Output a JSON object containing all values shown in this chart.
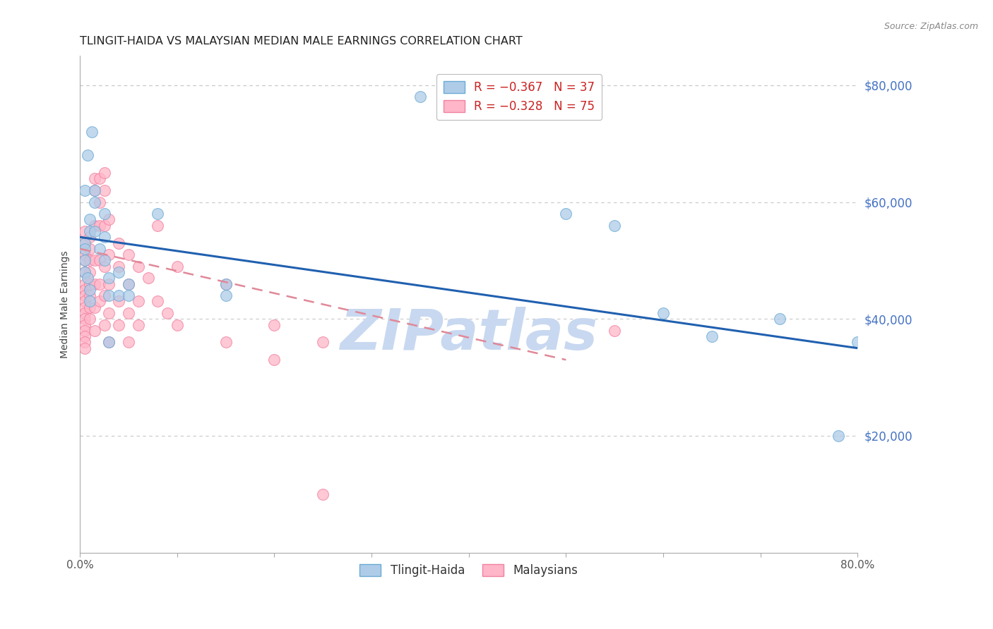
{
  "title": "TLINGIT-HAIDA VS MALAYSIAN MEDIAN MALE EARNINGS CORRELATION CHART",
  "source": "Source: ZipAtlas.com",
  "ylabel": "Median Male Earnings",
  "right_ytick_labels": [
    "$20,000",
    "$40,000",
    "$60,000",
    "$80,000"
  ],
  "right_ytick_values": [
    20000,
    40000,
    60000,
    80000
  ],
  "right_ytick_color": "#4472c4",
  "watermark": "ZIPatlas",
  "watermark_color": "#c8d8f0",
  "tlingit_scatter": [
    [
      0.005,
      62000
    ],
    [
      0.008,
      68000
    ],
    [
      0.01,
      57000
    ],
    [
      0.01,
      55000
    ],
    [
      0.012,
      72000
    ],
    [
      0.015,
      62000
    ],
    [
      0.015,
      60000
    ],
    [
      0.005,
      53000
    ],
    [
      0.005,
      52000
    ],
    [
      0.005,
      50000
    ],
    [
      0.005,
      48000
    ],
    [
      0.008,
      47000
    ],
    [
      0.01,
      45000
    ],
    [
      0.01,
      43000
    ],
    [
      0.015,
      55000
    ],
    [
      0.02,
      52000
    ],
    [
      0.025,
      58000
    ],
    [
      0.025,
      54000
    ],
    [
      0.025,
      50000
    ],
    [
      0.03,
      47000
    ],
    [
      0.03,
      44000
    ],
    [
      0.03,
      36000
    ],
    [
      0.04,
      48000
    ],
    [
      0.04,
      44000
    ],
    [
      0.05,
      46000
    ],
    [
      0.05,
      44000
    ],
    [
      0.08,
      58000
    ],
    [
      0.15,
      46000
    ],
    [
      0.15,
      44000
    ],
    [
      0.35,
      78000
    ],
    [
      0.5,
      58000
    ],
    [
      0.55,
      56000
    ],
    [
      0.6,
      41000
    ],
    [
      0.65,
      37000
    ],
    [
      0.72,
      40000
    ],
    [
      0.8,
      36000
    ],
    [
      0.78,
      20000
    ]
  ],
  "malaysian_scatter": [
    [
      0.005,
      55000
    ],
    [
      0.005,
      53000
    ],
    [
      0.005,
      51000
    ],
    [
      0.005,
      50000
    ],
    [
      0.005,
      48000
    ],
    [
      0.005,
      46000
    ],
    [
      0.005,
      45000
    ],
    [
      0.005,
      44000
    ],
    [
      0.005,
      43000
    ],
    [
      0.005,
      42000
    ],
    [
      0.005,
      41000
    ],
    [
      0.005,
      40000
    ],
    [
      0.005,
      39000
    ],
    [
      0.005,
      38000
    ],
    [
      0.005,
      37000
    ],
    [
      0.005,
      36000
    ],
    [
      0.005,
      35000
    ],
    [
      0.01,
      54000
    ],
    [
      0.01,
      52000
    ],
    [
      0.01,
      50000
    ],
    [
      0.01,
      48000
    ],
    [
      0.01,
      46000
    ],
    [
      0.01,
      44000
    ],
    [
      0.01,
      42000
    ],
    [
      0.01,
      40000
    ],
    [
      0.015,
      64000
    ],
    [
      0.015,
      62000
    ],
    [
      0.015,
      56000
    ],
    [
      0.015,
      50000
    ],
    [
      0.015,
      46000
    ],
    [
      0.015,
      42000
    ],
    [
      0.015,
      38000
    ],
    [
      0.02,
      64000
    ],
    [
      0.02,
      60000
    ],
    [
      0.02,
      56000
    ],
    [
      0.02,
      50000
    ],
    [
      0.02,
      46000
    ],
    [
      0.02,
      43000
    ],
    [
      0.025,
      65000
    ],
    [
      0.025,
      62000
    ],
    [
      0.025,
      56000
    ],
    [
      0.025,
      49000
    ],
    [
      0.025,
      44000
    ],
    [
      0.025,
      39000
    ],
    [
      0.03,
      57000
    ],
    [
      0.03,
      51000
    ],
    [
      0.03,
      46000
    ],
    [
      0.03,
      41000
    ],
    [
      0.03,
      36000
    ],
    [
      0.04,
      53000
    ],
    [
      0.04,
      49000
    ],
    [
      0.04,
      43000
    ],
    [
      0.04,
      39000
    ],
    [
      0.05,
      51000
    ],
    [
      0.05,
      46000
    ],
    [
      0.05,
      41000
    ],
    [
      0.05,
      36000
    ],
    [
      0.06,
      49000
    ],
    [
      0.06,
      43000
    ],
    [
      0.06,
      39000
    ],
    [
      0.07,
      47000
    ],
    [
      0.08,
      56000
    ],
    [
      0.08,
      43000
    ],
    [
      0.09,
      41000
    ],
    [
      0.1,
      49000
    ],
    [
      0.1,
      39000
    ],
    [
      0.15,
      46000
    ],
    [
      0.15,
      36000
    ],
    [
      0.2,
      39000
    ],
    [
      0.2,
      33000
    ],
    [
      0.25,
      36000
    ],
    [
      0.25,
      10000
    ],
    [
      0.55,
      38000
    ]
  ],
  "tlingit_line_x": [
    0.0,
    0.8
  ],
  "tlingit_line_y": [
    54000,
    35000
  ],
  "malaysian_line_x": [
    0.0,
    0.5
  ],
  "malaysian_line_y": [
    52000,
    33000
  ],
  "xmin": 0.0,
  "xmax": 0.8,
  "ymin": 0,
  "ymax": 85000,
  "background_color": "#ffffff",
  "grid_color": "#c8c8c8"
}
